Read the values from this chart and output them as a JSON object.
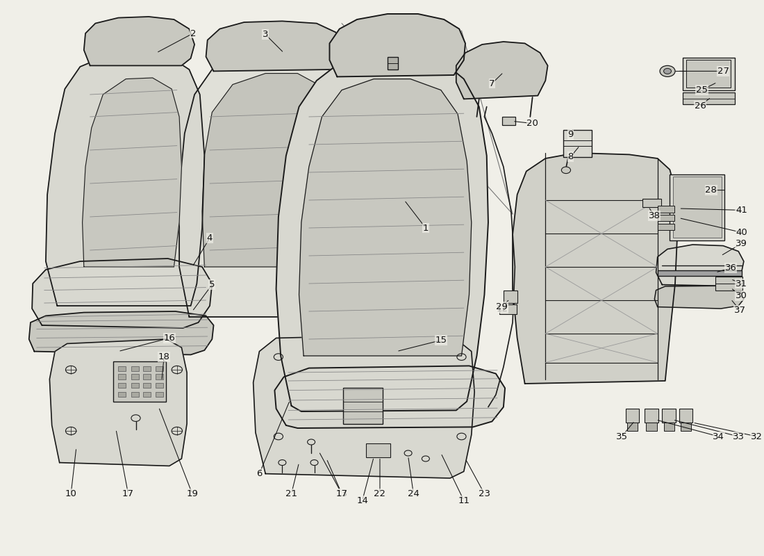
{
  "bg_color": "#f0efe8",
  "line_color": "#1a1a1a",
  "fill_color": "#d8d8d0",
  "fill_color2": "#c8c8c0",
  "fill_color3": "#e0e0d8"
}
